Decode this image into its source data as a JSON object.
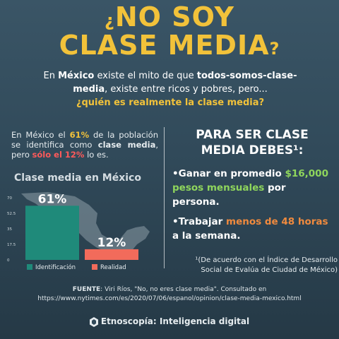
{
  "title": {
    "open_q": "¿",
    "line1": "NO SOY",
    "line2": "CLASE MEDIA",
    "close_q": "?"
  },
  "intro": {
    "p1": "En ",
    "mexico": "México",
    "p2": " existe el mito de que ",
    "todos": "todos-somos-clase-media",
    "p3": ", existe entre ricos y pobres, pero...",
    "question": "¿quién es realmente la clase media?"
  },
  "left": {
    "t1": "En México el ",
    "pct61": "61%",
    "t2": " de la población se identifica como ",
    "clase_media": "clase media",
    "t3": ", pero ",
    "solo": "sólo el 12%",
    "t4": " lo es."
  },
  "right": {
    "heading_line1": "PARA SER CLASE",
    "heading_line2": "MEDIA DEBES¹:",
    "b1_bullet": "•",
    "b1_t1": "Ganar en promedio ",
    "b1_amount": "$16,000 pesos mensuales",
    "b1_t2": " por persona.",
    "b2_bullet": "•",
    "b2_t1": "Trabajar ",
    "b2_hours": "menos de 48 horas",
    "b2_t2": " a la semana.",
    "footnote": "¹(De acuerdo con el Índice de Desarrollo Social de Evalúa de Ciudad de México)"
  },
  "source": {
    "label": "FUENTE",
    "text": ": Viri Ríos, \"No, no eres clase media\". Consultado en https://www.nytimes.com/es/2020/07/06/espanol/opinion/clase-media-mexico.html"
  },
  "brand": {
    "icon": "etnoscopia-logo-icon",
    "text": "Etnoscopía: Inteligencia digital"
  },
  "colors": {
    "yellow": "#f2c23a",
    "teal": "#1f8a7a",
    "salmon": "#f26b5b",
    "green": "#8fd65c",
    "orange": "#f08a3e",
    "red": "#ff5a5a"
  },
  "chart_data": {
    "type": "bar",
    "title": "Clase media en México",
    "categories": [
      "Identificación",
      "Realidad"
    ],
    "values": [
      61,
      12
    ],
    "value_labels": [
      "61%",
      "12%"
    ],
    "yticks": [
      0,
      17.5,
      35,
      52.5,
      70
    ],
    "ylim": [
      0,
      70
    ],
    "legend": [
      "Identificación",
      "Realidad"
    ],
    "legend_position": "bottom",
    "colors": [
      "#1f8a7a",
      "#f26b5b"
    ]
  }
}
